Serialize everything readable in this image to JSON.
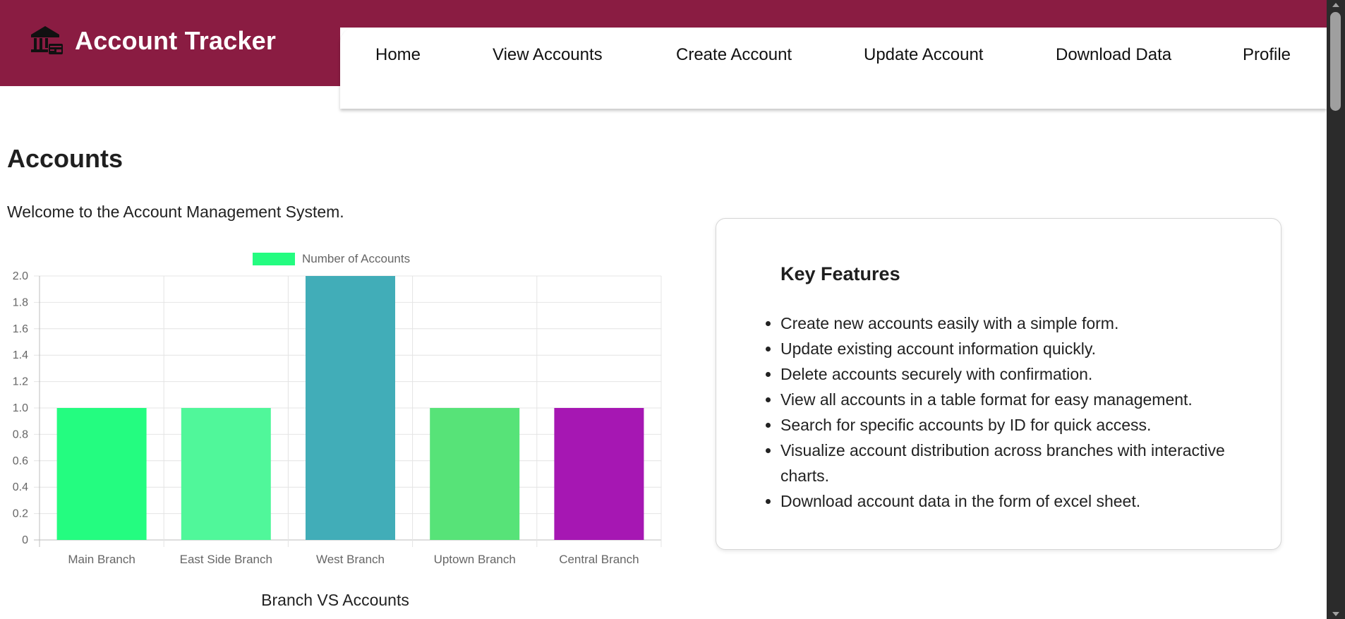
{
  "header": {
    "brand_title": "Account Tracker",
    "brand_icon": "bank-icon",
    "nav": [
      {
        "label": "Home"
      },
      {
        "label": "View Accounts"
      },
      {
        "label": "Create Account"
      },
      {
        "label": "Update Account"
      },
      {
        "label": "Download Data"
      },
      {
        "label": "Profile"
      }
    ],
    "colors": {
      "brand_bg": "#8a1c42"
    }
  },
  "main": {
    "title": "Accounts",
    "welcome": "Welcome to the Account Management System."
  },
  "features_card": {
    "title": "Key Features",
    "items": [
      "Create new accounts easily with a simple form.",
      "Update existing account information quickly.",
      "Delete accounts securely with confirmation.",
      "View all accounts in a table format for easy management.",
      "Search for specific accounts by ID for quick access.",
      "Visualize account distribution across branches with interactive charts.",
      "Download account data in the form of excel sheet."
    ]
  },
  "chart_data": {
    "type": "bar",
    "title": "",
    "xlabel": "Branch VS Accounts",
    "ylabel": "",
    "categories": [
      "Main Branch",
      "East Side Branch",
      "West Branch",
      "Uptown Branch",
      "Central Branch"
    ],
    "series": [
      {
        "name": "Number of Accounts",
        "values": [
          1,
          1,
          2,
          1,
          1
        ]
      }
    ],
    "bar_colors": [
      "#24fc80",
      "#50f79a",
      "#41adb8",
      "#57e378",
      "#a617b3"
    ],
    "legend_color": "#24fc80",
    "ylim": [
      0,
      2
    ],
    "yticks": [
      "0",
      "0.2",
      "0.4",
      "0.6",
      "0.8",
      "1.0",
      "1.2",
      "1.4",
      "1.6",
      "1.8",
      "2.0"
    ],
    "grid": true,
    "legend_position": "top"
  }
}
